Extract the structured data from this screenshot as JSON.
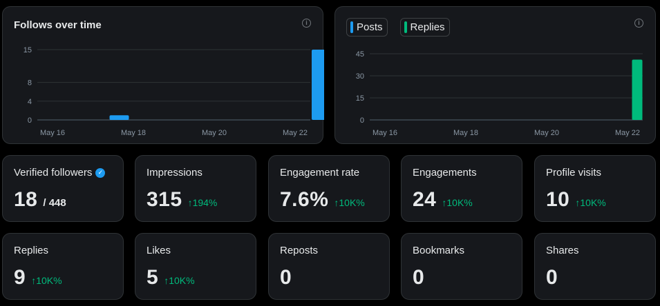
{
  "follows_chart": {
    "title": "Follows over time",
    "info_icon": "info-icon",
    "bar_color": "#1d9bf0"
  },
  "posts_chart": {
    "legend": [
      {
        "label": "Posts",
        "color": "#1d9bf0"
      },
      {
        "label": "Replies",
        "color": "#00ba7c"
      }
    ],
    "info_icon": "info-icon"
  },
  "chart_data": [
    {
      "type": "bar",
      "title": "Follows over time",
      "x": [
        "May 16",
        "May 17",
        "May 18",
        "May 19",
        "May 20",
        "May 21",
        "May 22"
      ],
      "x_tick_labels": [
        "May 16",
        "May 18",
        "May 20",
        "May 22"
      ],
      "y_ticks": [
        "0",
        "4",
        "8",
        "15"
      ],
      "ylim": [
        0,
        15
      ],
      "series": [
        {
          "values": [
            0,
            1,
            0,
            0,
            0,
            0,
            15
          ],
          "color": "#1d9bf0"
        }
      ],
      "grid": true
    },
    {
      "type": "bar",
      "x": [
        "May 16",
        "May 17",
        "May 18",
        "May 19",
        "May 20",
        "May 21",
        "May 22"
      ],
      "x_tick_labels": [
        "May 16",
        "May 18",
        "May 20",
        "May 22"
      ],
      "y_ticks": [
        "0",
        "15",
        "30",
        "45"
      ],
      "ylim": [
        0,
        45
      ],
      "series": [
        {
          "name": "Posts",
          "values": [
            0,
            0,
            0,
            0,
            0,
            0,
            0
          ],
          "color": "#1d9bf0"
        },
        {
          "name": "Replies",
          "values": [
            0,
            0,
            0,
            0,
            0,
            0,
            41
          ],
          "color": "#00ba7c"
        }
      ],
      "legend": "top-left",
      "grid": true
    }
  ],
  "stats": {
    "verified_followers": {
      "label": "Verified followers",
      "value": "18",
      "total": "/ 448"
    },
    "impressions": {
      "label": "Impressions",
      "value": "315",
      "change": "↑194%"
    },
    "engagement_rate": {
      "label": "Engagement rate",
      "value": "7.6%",
      "change": "↑10K%"
    },
    "engagements": {
      "label": "Engagements",
      "value": "24",
      "change": "↑10K%"
    },
    "profile_visits": {
      "label": "Profile visits",
      "value": "10",
      "change": "↑10K%"
    },
    "replies": {
      "label": "Replies",
      "value": "9",
      "change": "↑10K%"
    },
    "likes": {
      "label": "Likes",
      "value": "5",
      "change": "↑10K%"
    },
    "reposts": {
      "label": "Reposts",
      "value": "0"
    },
    "bookmarks": {
      "label": "Bookmarks",
      "value": "0"
    },
    "shares": {
      "label": "Shares",
      "value": "0"
    }
  }
}
